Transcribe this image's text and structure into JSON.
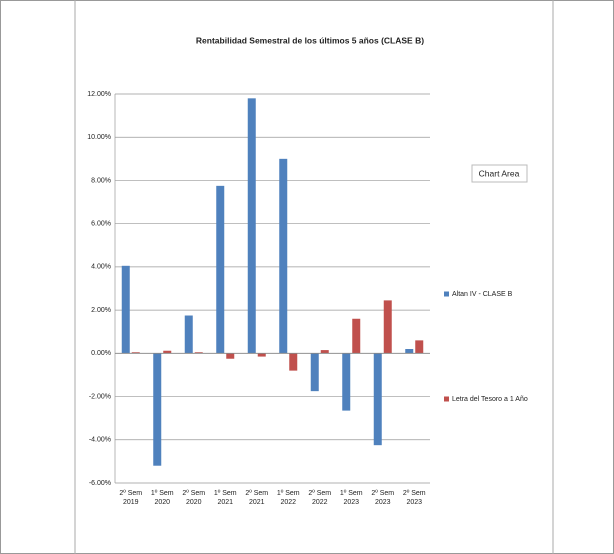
{
  "chart_data": {
    "type": "bar",
    "title": "Rentabilidad Semestral de los últimos 5 años (CLASE B)",
    "categories": [
      "2º Sem 2019",
      "1º Sem 2020",
      "2º Sem 2020",
      "1º Sem 2021",
      "2º Sem 2021",
      "1º Sem 2022",
      "2º Sem 2022",
      "1º Sem 2023",
      "2º Sem 2023",
      "2º Sem 2023"
    ],
    "series": [
      {
        "name": "Altan IV - CLASE B",
        "color": "#4f81bd",
        "values": [
          4.05,
          -5.2,
          1.75,
          7.75,
          11.8,
          9.0,
          -1.75,
          -2.65,
          -4.25,
          0.2
        ]
      },
      {
        "name": "Letra del Tesoro a 1 Año",
        "color": "#c0504d",
        "values": [
          0.05,
          0.12,
          0.05,
          -0.25,
          -0.15,
          -0.8,
          0.15,
          1.6,
          2.45,
          0.6
        ]
      }
    ],
    "ylim": [
      -6,
      12
    ],
    "yticks": [
      {
        "value": -6,
        "label": "-6.00%"
      },
      {
        "value": -4,
        "label": "-4.00%"
      },
      {
        "value": -2,
        "label": "-2.00%"
      },
      {
        "value": 0,
        "label": "0.00%"
      },
      {
        "value": 2,
        "label": "2.00%"
      },
      {
        "value": 4,
        "label": "4.00%"
      },
      {
        "value": 6,
        "label": "6.00%"
      },
      {
        "value": 8,
        "label": "8.00%"
      },
      {
        "value": 10,
        "label": "10.00%"
      },
      {
        "value": 12,
        "label": "12.00%"
      }
    ],
    "grid": true,
    "tooltip": "Chart Area"
  }
}
